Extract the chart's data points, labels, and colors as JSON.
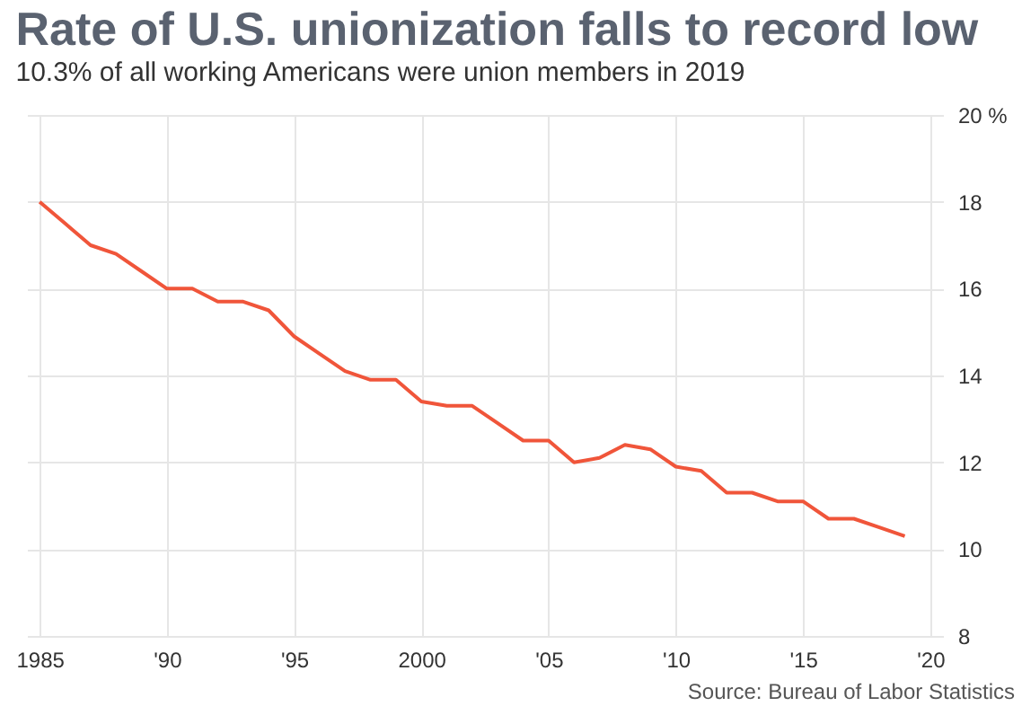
{
  "chart_data": {
    "type": "line",
    "title": "Rate of U.S. unionization falls to record low",
    "subtitle": "10.3% of all working Americans were union members in 2019",
    "x": [
      1985,
      1986,
      1987,
      1988,
      1989,
      1990,
      1991,
      1992,
      1993,
      1994,
      1995,
      1996,
      1997,
      1998,
      1999,
      2000,
      2001,
      2002,
      2003,
      2004,
      2005,
      2006,
      2007,
      2008,
      2009,
      2010,
      2011,
      2012,
      2013,
      2014,
      2015,
      2016,
      2017,
      2018,
      2019
    ],
    "series": [
      {
        "color": "#f0553a",
        "values": [
          18.0,
          17.5,
          17.0,
          16.8,
          16.4,
          16.0,
          16.0,
          15.7,
          15.7,
          15.5,
          14.9,
          14.5,
          14.1,
          13.9,
          13.9,
          13.4,
          13.3,
          13.3,
          12.9,
          12.5,
          12.5,
          12.0,
          12.1,
          12.4,
          12.3,
          11.9,
          11.8,
          11.3,
          11.3,
          11.1,
          11.1,
          10.7,
          10.7,
          10.5,
          10.3
        ]
      }
    ],
    "xlim": [
      1984.5,
      2020.5
    ],
    "xticks": [
      1985,
      {
        "value": 1990,
        "label": "'90"
      },
      {
        "value": 1995,
        "label": "'95"
      },
      2000,
      {
        "value": 2005,
        "label": "'05"
      },
      {
        "value": 2010,
        "label": "'10"
      },
      {
        "value": 2015,
        "label": "'15"
      },
      {
        "value": 2020,
        "label": "'20"
      }
    ],
    "ylim": [
      8,
      20
    ],
    "yticks": [
      8,
      10,
      12,
      14,
      16,
      18,
      {
        "value": 20,
        "label": "20 %"
      }
    ],
    "grid": true,
    "marker": "none",
    "line_style": "solid",
    "annotations": [
      "Source: Bureau of Labor Statistics"
    ]
  }
}
